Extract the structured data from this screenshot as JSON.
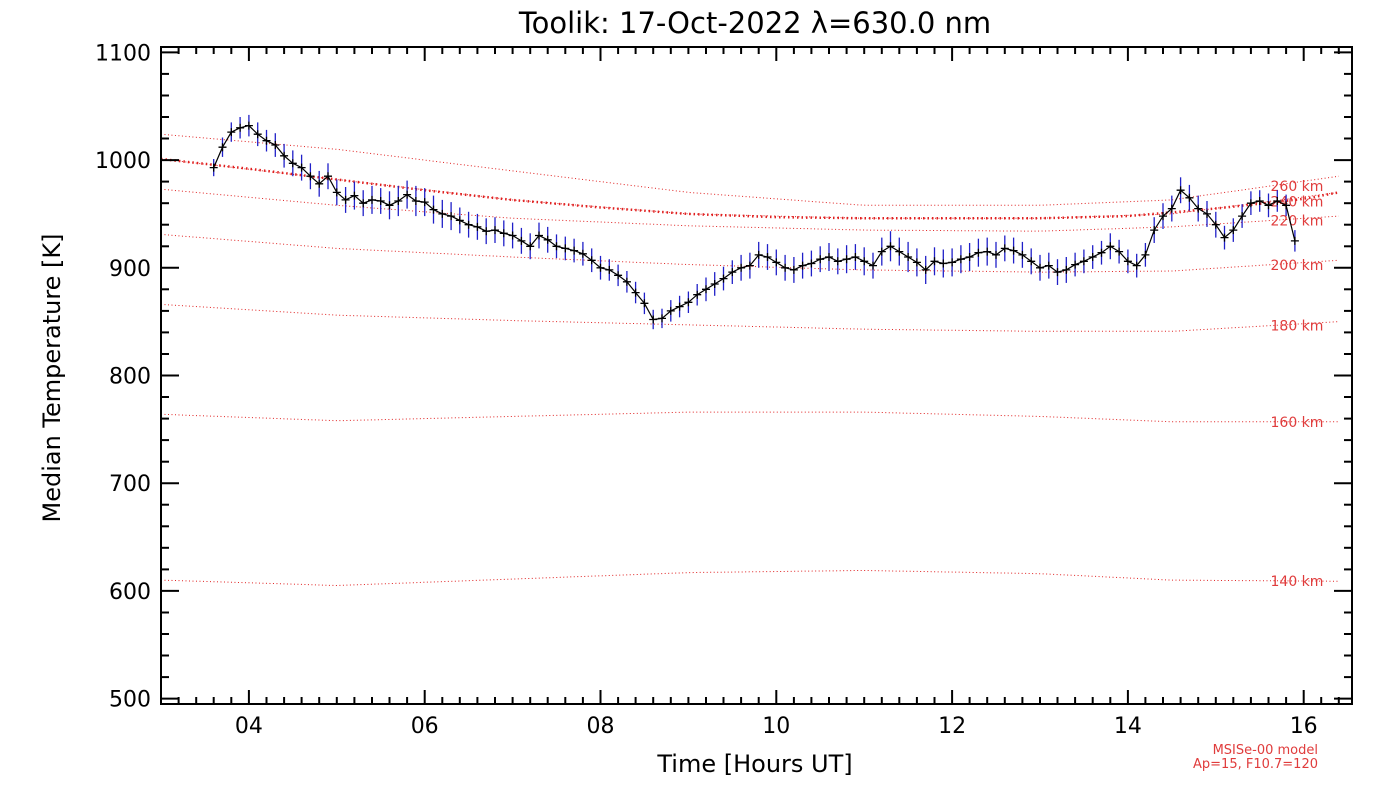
{
  "chart_data": {
    "type": "line",
    "title": "Toolik: 17-Oct-2022 λ=630.0 nm",
    "xlabel": "Time [Hours UT]",
    "ylabel": "Median Temperature [K]",
    "xlim": [
      3.0,
      16.55
    ],
    "ylim": [
      495,
      1105
    ],
    "x_ticks": [
      4,
      6,
      8,
      10,
      12,
      14,
      16
    ],
    "x_tick_labels": [
      "04",
      "06",
      "08",
      "10",
      "12",
      "14",
      "16"
    ],
    "y_ticks": [
      500,
      600,
      700,
      800,
      900,
      1000,
      1100
    ],
    "y_tick_labels": [
      "500",
      "600",
      "700",
      "800",
      "900",
      "1000",
      "1100"
    ],
    "grid": false,
    "colors": {
      "measurement": "#000000",
      "error_bar": "#2020c8",
      "model": "#e02020"
    },
    "measurement": {
      "x": [
        3.6,
        3.7,
        3.8,
        3.9,
        4.0,
        4.1,
        4.2,
        4.3,
        4.4,
        4.5,
        4.6,
        4.7,
        4.8,
        4.9,
        5.0,
        5.1,
        5.2,
        5.3,
        5.4,
        5.5,
        5.6,
        5.7,
        5.8,
        5.9,
        6.0,
        6.1,
        6.2,
        6.3,
        6.4,
        6.5,
        6.6,
        6.7,
        6.8,
        6.9,
        7.0,
        7.1,
        7.2,
        7.3,
        7.4,
        7.5,
        7.6,
        7.7,
        7.8,
        7.9,
        8.0,
        8.1,
        8.2,
        8.3,
        8.4,
        8.5,
        8.6,
        8.7,
        8.8,
        8.9,
        9.0,
        9.1,
        9.2,
        9.3,
        9.4,
        9.5,
        9.6,
        9.7,
        9.8,
        9.9,
        10.0,
        10.1,
        10.2,
        10.3,
        10.4,
        10.5,
        10.6,
        10.7,
        10.8,
        10.9,
        11.0,
        11.1,
        11.2,
        11.3,
        11.4,
        11.5,
        11.6,
        11.7,
        11.8,
        11.9,
        12.0,
        12.1,
        12.2,
        12.3,
        12.4,
        12.5,
        12.6,
        12.7,
        12.8,
        12.9,
        13.0,
        13.1,
        13.2,
        13.3,
        13.4,
        13.5,
        13.6,
        13.7,
        13.8,
        13.9,
        14.0,
        14.1,
        14.2,
        14.3,
        14.4,
        14.5,
        14.6,
        14.7,
        14.8,
        14.9,
        15.0,
        15.1,
        15.2,
        15.3,
        15.4,
        15.5,
        15.6,
        15.7,
        15.8,
        15.9
      ],
      "y": [
        993,
        1012,
        1026,
        1030,
        1032,
        1024,
        1018,
        1014,
        1004,
        997,
        993,
        985,
        978,
        985,
        970,
        963,
        967,
        960,
        963,
        962,
        958,
        962,
        968,
        962,
        961,
        954,
        950,
        948,
        944,
        940,
        938,
        934,
        935,
        932,
        930,
        925,
        920,
        930,
        926,
        920,
        918,
        916,
        913,
        907,
        900,
        898,
        893,
        887,
        877,
        867,
        852,
        853,
        860,
        864,
        868,
        875,
        880,
        885,
        890,
        896,
        900,
        902,
        912,
        910,
        905,
        900,
        898,
        902,
        904,
        908,
        910,
        906,
        908,
        910,
        906,
        902,
        915,
        920,
        915,
        910,
        905,
        898,
        906,
        904,
        905,
        908,
        910,
        914,
        915,
        912,
        918,
        916,
        912,
        906,
        900,
        902,
        896,
        898,
        903,
        906,
        910,
        914,
        920,
        915,
        906,
        902,
        912,
        935,
        948,
        955,
        972,
        965,
        955,
        950,
        940,
        928,
        935,
        948,
        960,
        962,
        958,
        962,
        958,
        925
      ],
      "errors": [
        8,
        9,
        9,
        10,
        10,
        11,
        10,
        11,
        11,
        12,
        12,
        12,
        12,
        12,
        12,
        12,
        13,
        12,
        13,
        12,
        13,
        14,
        13,
        14,
        13,
        13,
        13,
        13,
        12,
        12,
        12,
        12,
        12,
        12,
        12,
        12,
        12,
        12,
        12,
        11,
        11,
        11,
        11,
        11,
        11,
        10,
        10,
        10,
        10,
        10,
        9,
        9,
        10,
        10,
        10,
        10,
        11,
        11,
        11,
        11,
        12,
        12,
        12,
        12,
        12,
        12,
        12,
        12,
        12,
        12,
        13,
        12,
        13,
        12,
        13,
        12,
        13,
        14,
        13,
        14,
        13,
        13,
        13,
        13,
        13,
        13,
        13,
        13,
        13,
        12,
        12,
        12,
        12,
        12,
        12,
        12,
        12,
        12,
        11,
        11,
        11,
        11,
        12,
        11,
        11,
        11,
        11,
        12,
        12,
        12,
        12,
        12,
        12,
        12,
        12,
        11,
        11,
        11,
        11,
        10,
        11,
        10,
        10,
        10
      ]
    },
    "model": {
      "name": "MSISe-00 model",
      "params": "Ap=15, F10.7=120",
      "median_curve": {
        "x": [
          3.0,
          4.0,
          5.0,
          6.0,
          7.0,
          8.0,
          9.0,
          10.0,
          11.0,
          12.0,
          13.0,
          14.0,
          15.0,
          16.0,
          16.4
        ],
        "y": [
          1001,
          992,
          982,
          972,
          963,
          956,
          950,
          947,
          946,
          946,
          946,
          948,
          955,
          964,
          970
        ]
      },
      "altitudes": [
        {
          "label": "260 km",
          "x": [
            3.0,
            5.0,
            7.0,
            9.0,
            11.0,
            13.0,
            14.5,
            16.4
          ],
          "y": [
            1024,
            1010,
            990,
            970,
            958,
            958,
            963,
            985
          ]
        },
        {
          "label": "240 km",
          "x": [
            3.0,
            5.0,
            7.0,
            9.0,
            11.0,
            13.0,
            14.5,
            16.4
          ],
          "y": [
            1001,
            982,
            963,
            950,
            946,
            946,
            950,
            970
          ]
        },
        {
          "label": "220 km",
          "x": [
            3.0,
            5.0,
            7.0,
            9.0,
            11.0,
            13.0,
            14.5,
            16.4
          ],
          "y": [
            973,
            958,
            946,
            939,
            935,
            934,
            938,
            948
          ]
        },
        {
          "label": "200 km",
          "x": [
            3.0,
            5.0,
            7.0,
            9.0,
            11.0,
            13.0,
            14.5,
            16.4
          ],
          "y": [
            931,
            918,
            910,
            903,
            898,
            896,
            897,
            907
          ]
        },
        {
          "label": "180 km",
          "x": [
            3.0,
            5.0,
            7.0,
            9.0,
            11.0,
            13.0,
            14.5,
            16.4
          ],
          "y": [
            866,
            856,
            851,
            847,
            843,
            841,
            841,
            850
          ]
        },
        {
          "label": "160 km",
          "x": [
            3.0,
            5.0,
            7.0,
            9.0,
            11.0,
            13.0,
            14.5,
            16.4
          ],
          "y": [
            764,
            758,
            762,
            766,
            766,
            762,
            757,
            757
          ]
        },
        {
          "label": "140 km",
          "x": [
            3.0,
            5.0,
            7.0,
            9.0,
            11.0,
            13.0,
            14.5,
            16.4
          ],
          "y": [
            610,
            605,
            611,
            617,
            619,
            616,
            610,
            609
          ]
        }
      ]
    }
  }
}
